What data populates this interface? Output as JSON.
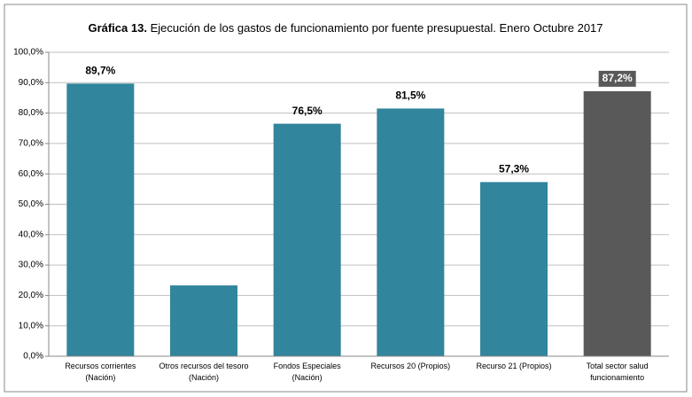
{
  "chart_data": {
    "type": "bar",
    "title": [
      "Gráfica 13.",
      "Ejecución de los gastos de funcionamiento por fuente presupuestal. Enero Octubre 2017"
    ],
    "categories": [
      "Recursos corrientes (Nación)",
      "Otros recursos del tesoro (Nación)",
      "Fondos Especiales (Nación)",
      "Recursos 20 (Propios)",
      "Recurso 21 (Propios)",
      "Total sector salud funcionamiento"
    ],
    "values": [
      89.7,
      23.3,
      76.5,
      81.5,
      57.3,
      87.2
    ],
    "value_labels": [
      "89,7%",
      null,
      "76,5%",
      "81,5%",
      "57,3%",
      "87,2%"
    ],
    "value_label_backgrounds": [
      null,
      null,
      null,
      null,
      null,
      "#595959"
    ],
    "colors": [
      "#31859c",
      "#31859c",
      "#31859c",
      "#31859c",
      "#31859c",
      "#595959"
    ],
    "ylim": [
      0,
      100
    ],
    "yticks": [
      {
        "value": 0,
        "label": "0,0%"
      },
      {
        "value": 10,
        "label": "10,0%"
      },
      {
        "value": 20,
        "label": "20,0%"
      },
      {
        "value": 30,
        "label": "30,0%"
      },
      {
        "value": 40,
        "label": "40,0%"
      },
      {
        "value": 50,
        "label": "50,0%"
      },
      {
        "value": 60,
        "label": "60,0%"
      },
      {
        "value": 70,
        "label": "70,0%"
      },
      {
        "value": 80,
        "label": "80,0%"
      },
      {
        "value": 90,
        "label": "90,0%"
      },
      {
        "value": 100,
        "label": "100,0%"
      }
    ],
    "grid": true
  }
}
